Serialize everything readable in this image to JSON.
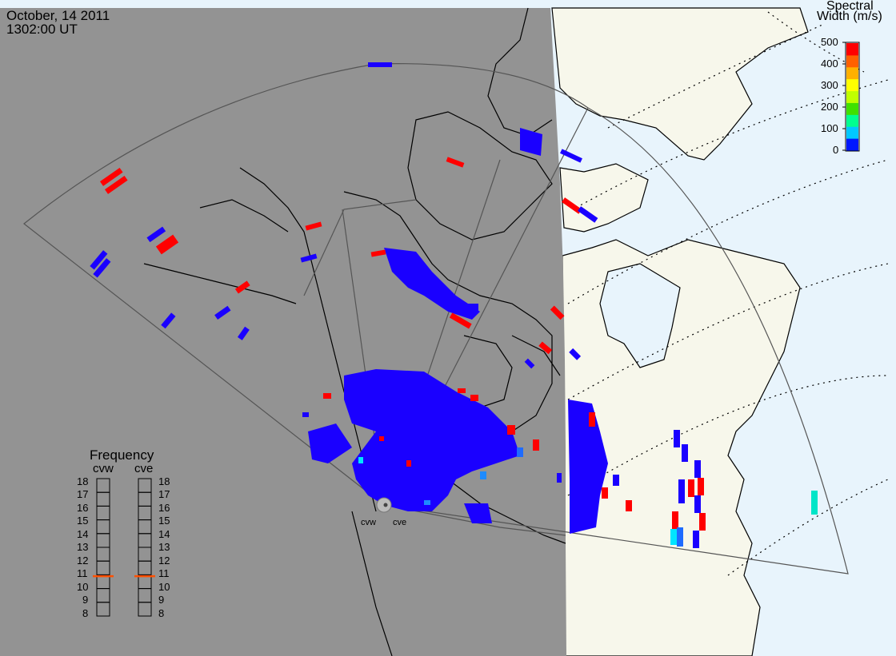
{
  "header": {
    "date": "October, 14 2011",
    "time": "1302:00 UT"
  },
  "colorbar": {
    "title_line1": "Spectral",
    "title_line2": "Width (m/s)",
    "ticks": [
      "500",
      "400",
      "300",
      "200",
      "100",
      "0"
    ],
    "colors": [
      "#0018ff",
      "#00c8ff",
      "#00ff90",
      "#40e000",
      "#c0ff00",
      "#ffff00",
      "#ffb000",
      "#ff6000",
      "#ff0000"
    ]
  },
  "frequency_panel": {
    "title": "Frequency",
    "radars": [
      {
        "label": "cvw",
        "frequency_mhz": 10.9
      },
      {
        "label": "cve",
        "frequency_mhz": 10.9
      }
    ],
    "scale": [
      "18",
      "17",
      "16",
      "15",
      "14",
      "13",
      "12",
      "11",
      "10",
      "9",
      "8"
    ],
    "marker_color": "#ff5000"
  },
  "sites": [
    {
      "label": "cvw"
    },
    {
      "label": "cve"
    }
  ],
  "colors": {
    "night_shading": "#939393",
    "day_land": "#f7f7eb",
    "day_ocean": "#e8f4fc",
    "low_width": "#1a00ff",
    "high_width": "#ff0000",
    "mid_width": "#00e5ff"
  }
}
